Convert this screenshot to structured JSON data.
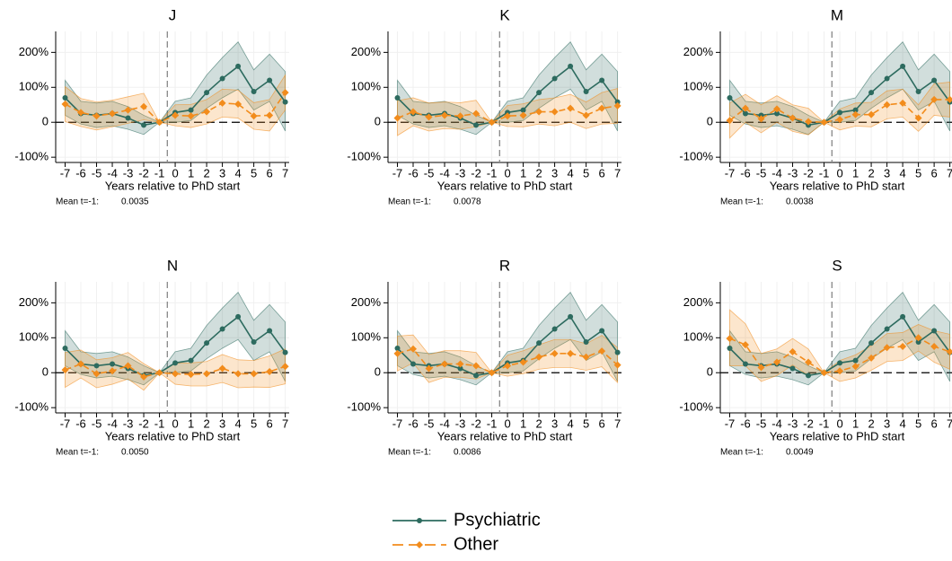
{
  "legend": [
    {
      "name": "Psychiatric",
      "color": "#2d6b5f",
      "marker": "circle",
      "dash": false
    },
    {
      "name": "Other",
      "color": "#f28c1c",
      "marker": "diamond",
      "dash": true
    }
  ],
  "chart_data": [
    {
      "type": "line",
      "title": "J",
      "x_label": "Years relative to PhD start",
      "note_label": "Mean t=-1:",
      "note_value": "0.0035",
      "x": [
        -7,
        -6,
        -5,
        -4,
        -3,
        -2,
        -1,
        0,
        1,
        2,
        3,
        4,
        5,
        6,
        7
      ],
      "xlim": [
        -7.6,
        7.25
      ],
      "xticks": [
        -7,
        -6,
        -5,
        -4,
        -3,
        -2,
        -1,
        0,
        1,
        2,
        3,
        4,
        5,
        6,
        7
      ],
      "ylim": [
        -115,
        260
      ],
      "yticks": [
        {
          "value": -100,
          "label": "-100%"
        },
        0,
        {
          "value": 100,
          "label": "100%"
        },
        {
          "value": 200,
          "label": "200%"
        }
      ],
      "vline": -0.5,
      "hline": 0,
      "grid": true,
      "series": [
        {
          "values": [
            70,
            25,
            20,
            25,
            12,
            -8,
            0,
            28,
            35,
            85,
            125,
            160,
            88,
            120,
            58
          ],
          "lower": [
            20,
            -5,
            -15,
            -10,
            -20,
            -35,
            0,
            0,
            5,
            40,
            70,
            95,
            35,
            60,
            -25
          ],
          "upper": [
            120,
            60,
            55,
            60,
            45,
            20,
            0,
            60,
            70,
            135,
            185,
            230,
            150,
            195,
            145
          ]
        },
        {
          "values": [
            52,
            28,
            18,
            25,
            35,
            45,
            0,
            20,
            18,
            30,
            55,
            52,
            18,
            20,
            85
          ],
          "lower": [
            2,
            -12,
            -22,
            -13,
            -3,
            7,
            0,
            -10,
            -15,
            -5,
            15,
            12,
            -20,
            -25,
            35
          ],
          "upper": [
            102,
            68,
            58,
            63,
            73,
            83,
            0,
            50,
            51,
            65,
            95,
            92,
            56,
            65,
            135
          ]
        }
      ]
    },
    {
      "type": "line",
      "title": "K",
      "x_label": "Years relative to PhD start",
      "note_label": "Mean t=-1:",
      "note_value": "0.0078",
      "x": [
        -7,
        -6,
        -5,
        -4,
        -3,
        -2,
        -1,
        0,
        1,
        2,
        3,
        4,
        5,
        6,
        7
      ],
      "xlim": [
        -7.6,
        7.25
      ],
      "xticks": [
        -7,
        -6,
        -5,
        -4,
        -3,
        -2,
        -1,
        0,
        1,
        2,
        3,
        4,
        5,
        6,
        7
      ],
      "ylim": [
        -115,
        260
      ],
      "yticks": [
        {
          "value": -100,
          "label": "-100%"
        },
        0,
        {
          "value": 100,
          "label": "100%"
        },
        {
          "value": 200,
          "label": "200%"
        }
      ],
      "vline": -0.5,
      "hline": 0,
      "grid": true,
      "series": [
        {
          "values": [
            70,
            25,
            20,
            25,
            12,
            -8,
            0,
            28,
            35,
            85,
            125,
            160,
            88,
            120,
            58
          ],
          "lower": [
            20,
            -5,
            -15,
            -10,
            -20,
            -35,
            0,
            0,
            5,
            40,
            70,
            95,
            35,
            60,
            -25
          ],
          "upper": [
            120,
            60,
            55,
            60,
            45,
            20,
            0,
            60,
            70,
            135,
            185,
            230,
            150,
            195,
            145
          ]
        },
        {
          "values": [
            12,
            30,
            15,
            20,
            18,
            25,
            0,
            18,
            20,
            30,
            30,
            40,
            20,
            40,
            47
          ],
          "lower": [
            -38,
            -10,
            -25,
            -18,
            -20,
            -13,
            0,
            -12,
            -13,
            -5,
            -10,
            0,
            -18,
            -5,
            -3
          ],
          "upper": [
            62,
            70,
            55,
            58,
            56,
            63,
            0,
            48,
            53,
            65,
            70,
            80,
            58,
            85,
            97
          ]
        }
      ]
    },
    {
      "type": "line",
      "title": "M",
      "x_label": "Years relative to PhD start",
      "note_label": "Mean t=-1:",
      "note_value": "0.0038",
      "x": [
        -7,
        -6,
        -5,
        -4,
        -3,
        -2,
        -1,
        0,
        1,
        2,
        3,
        4,
        5,
        6,
        7
      ],
      "xlim": [
        -7.6,
        7.25
      ],
      "xticks": [
        -7,
        -6,
        -5,
        -4,
        -3,
        -2,
        -1,
        0,
        1,
        2,
        3,
        4,
        5,
        6,
        7
      ],
      "ylim": [
        -115,
        260
      ],
      "yticks": [
        {
          "value": -100,
          "label": "-100%"
        },
        0,
        {
          "value": 100,
          "label": "100%"
        },
        {
          "value": 200,
          "label": "200%"
        }
      ],
      "vline": -0.5,
      "hline": 0,
      "grid": true,
      "series": [
        {
          "values": [
            70,
            25,
            20,
            25,
            12,
            -8,
            0,
            28,
            35,
            85,
            125,
            160,
            88,
            120,
            58
          ],
          "lower": [
            20,
            -5,
            -15,
            -10,
            -20,
            -35,
            0,
            0,
            5,
            40,
            70,
            95,
            35,
            60,
            -25
          ],
          "upper": [
            120,
            60,
            55,
            60,
            45,
            20,
            0,
            60,
            70,
            135,
            185,
            230,
            150,
            195,
            145
          ]
        },
        {
          "values": [
            5,
            40,
            10,
            38,
            12,
            2,
            0,
            8,
            22,
            22,
            50,
            55,
            12,
            65,
            65
          ],
          "lower": [
            -45,
            0,
            -30,
            0,
            -26,
            -36,
            0,
            -22,
            -11,
            -13,
            10,
            15,
            -26,
            20,
            15
          ],
          "upper": [
            55,
            80,
            50,
            76,
            50,
            40,
            0,
            38,
            55,
            57,
            90,
            95,
            50,
            110,
            115
          ]
        }
      ]
    },
    {
      "type": "line",
      "title": "N",
      "x_label": "Years relative to PhD start",
      "note_label": "Mean t=-1:",
      "note_value": "0.0050",
      "x": [
        -7,
        -6,
        -5,
        -4,
        -3,
        -2,
        -1,
        0,
        1,
        2,
        3,
        4,
        5,
        6,
        7
      ],
      "xlim": [
        -7.6,
        7.25
      ],
      "xticks": [
        -7,
        -6,
        -5,
        -4,
        -3,
        -2,
        -1,
        0,
        1,
        2,
        3,
        4,
        5,
        6,
        7
      ],
      "ylim": [
        -115,
        260
      ],
      "yticks": [
        {
          "value": -100,
          "label": "-100%"
        },
        0,
        {
          "value": 100,
          "label": "100%"
        },
        {
          "value": 200,
          "label": "200%"
        }
      ],
      "vline": -0.5,
      "hline": 0,
      "grid": true,
      "series": [
        {
          "values": [
            70,
            25,
            20,
            25,
            12,
            -8,
            0,
            28,
            35,
            85,
            125,
            160,
            88,
            120,
            58
          ],
          "lower": [
            20,
            -5,
            -15,
            -10,
            -20,
            -35,
            0,
            0,
            5,
            40,
            70,
            95,
            35,
            60,
            -25
          ],
          "upper": [
            120,
            60,
            55,
            60,
            45,
            20,
            0,
            60,
            70,
            135,
            185,
            230,
            150,
            195,
            145
          ]
        },
        {
          "values": [
            8,
            25,
            -3,
            5,
            20,
            -12,
            0,
            -3,
            -5,
            -3,
            12,
            -3,
            -3,
            3,
            18
          ],
          "lower": [
            -42,
            -15,
            -43,
            -33,
            -18,
            -50,
            0,
            -33,
            -38,
            -38,
            -28,
            -43,
            -41,
            -42,
            -32
          ],
          "upper": [
            58,
            65,
            37,
            43,
            58,
            26,
            0,
            27,
            28,
            32,
            52,
            37,
            35,
            48,
            68
          ]
        }
      ]
    },
    {
      "type": "line",
      "title": "R",
      "x_label": "Years relative to PhD start",
      "note_label": "Mean t=-1:",
      "note_value": "0.0086",
      "x": [
        -7,
        -6,
        -5,
        -4,
        -3,
        -2,
        -1,
        0,
        1,
        2,
        3,
        4,
        5,
        6,
        7
      ],
      "xlim": [
        -7.6,
        7.25
      ],
      "xticks": [
        -7,
        -6,
        -5,
        -4,
        -3,
        -2,
        -1,
        0,
        1,
        2,
        3,
        4,
        5,
        6,
        7
      ],
      "ylim": [
        -115,
        260
      ],
      "yticks": [
        {
          "value": -100,
          "label": "-100%"
        },
        0,
        {
          "value": 100,
          "label": "100%"
        },
        {
          "value": 200,
          "label": "200%"
        }
      ],
      "vline": -0.5,
      "hline": 0,
      "grid": true,
      "series": [
        {
          "values": [
            70,
            25,
            20,
            25,
            12,
            -8,
            0,
            28,
            35,
            85,
            125,
            160,
            88,
            120,
            58
          ],
          "lower": [
            20,
            -5,
            -15,
            -10,
            -20,
            -35,
            0,
            0,
            5,
            40,
            70,
            95,
            35,
            60,
            -25
          ],
          "upper": [
            120,
            60,
            55,
            60,
            45,
            20,
            0,
            60,
            70,
            135,
            185,
            230,
            150,
            195,
            145
          ]
        },
        {
          "values": [
            55,
            68,
            12,
            25,
            25,
            20,
            0,
            20,
            30,
            45,
            55,
            55,
            45,
            62,
            22
          ],
          "lower": [
            5,
            28,
            -28,
            -13,
            -13,
            -18,
            0,
            -10,
            -3,
            10,
            15,
            15,
            7,
            17,
            -28
          ],
          "upper": [
            105,
            108,
            52,
            63,
            63,
            58,
            0,
            50,
            63,
            80,
            95,
            95,
            83,
            107,
            72
          ]
        }
      ]
    },
    {
      "type": "line",
      "title": "S",
      "x_label": "Years relative to PhD start",
      "note_label": "Mean t=-1:",
      "note_value": "0.0049",
      "x": [
        -7,
        -6,
        -5,
        -4,
        -3,
        -2,
        -1,
        0,
        1,
        2,
        3,
        4,
        5,
        6,
        7
      ],
      "xlim": [
        -7.6,
        7.25
      ],
      "xticks": [
        -7,
        -6,
        -5,
        -4,
        -3,
        -2,
        -1,
        0,
        1,
        2,
        3,
        4,
        5,
        6,
        7
      ],
      "ylim": [
        -115,
        260
      ],
      "yticks": [
        {
          "value": -100,
          "label": "-100%"
        },
        0,
        {
          "value": 100,
          "label": "100%"
        },
        {
          "value": 200,
          "label": "200%"
        }
      ],
      "vline": -0.5,
      "hline": 0,
      "grid": true,
      "series": [
        {
          "values": [
            70,
            25,
            20,
            25,
            12,
            -8,
            0,
            28,
            35,
            85,
            125,
            160,
            88,
            120,
            58
          ],
          "lower": [
            20,
            -5,
            -15,
            -10,
            -20,
            -35,
            0,
            0,
            5,
            40,
            70,
            95,
            35,
            60,
            -25
          ],
          "upper": [
            120,
            60,
            55,
            60,
            45,
            20,
            0,
            60,
            70,
            135,
            185,
            230,
            150,
            195,
            145
          ]
        },
        {
          "values": [
            98,
            80,
            15,
            30,
            60,
            30,
            0,
            5,
            18,
            42,
            72,
            75,
            100,
            75,
            60
          ],
          "lower": [
            20,
            20,
            -25,
            -8,
            22,
            -8,
            0,
            -25,
            -15,
            7,
            32,
            35,
            62,
            30,
            10
          ],
          "upper": [
            180,
            140,
            55,
            68,
            98,
            68,
            0,
            35,
            51,
            77,
            112,
            115,
            138,
            120,
            110
          ]
        }
      ]
    }
  ]
}
